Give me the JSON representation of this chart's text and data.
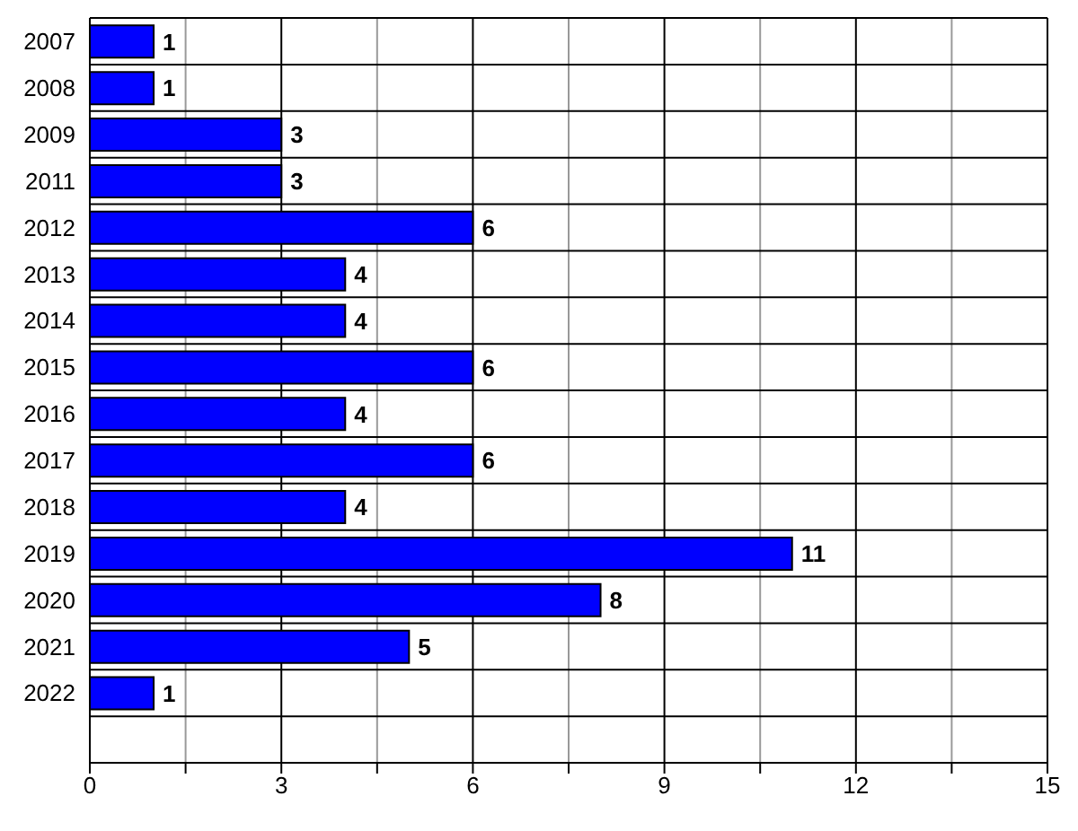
{
  "chart_data": {
    "type": "bar",
    "orientation": "horizontal",
    "categories": [
      "2007",
      "2008",
      "2009",
      "2011",
      "2012",
      "2013",
      "2014",
      "2015",
      "2016",
      "2017",
      "2018",
      "2019",
      "2020",
      "2021",
      "2022",
      null
    ],
    "values": [
      1,
      1,
      3,
      3,
      6,
      4,
      4,
      6,
      4,
      6,
      4,
      11,
      8,
      5,
      1,
      null
    ],
    "color": "#0000ff",
    "xlim": [
      0,
      15
    ],
    "xticks": [
      0,
      {
        "value": 1.5,
        "label": null
      },
      3,
      {
        "value": 4.5,
        "label": null
      },
      6,
      {
        "value": 7.5,
        "label": null
      },
      9,
      {
        "value": 10.5,
        "label": null
      },
      12,
      {
        "value": 13.5,
        "label": null
      },
      15
    ],
    "grid": true,
    "data_labels": true
  }
}
